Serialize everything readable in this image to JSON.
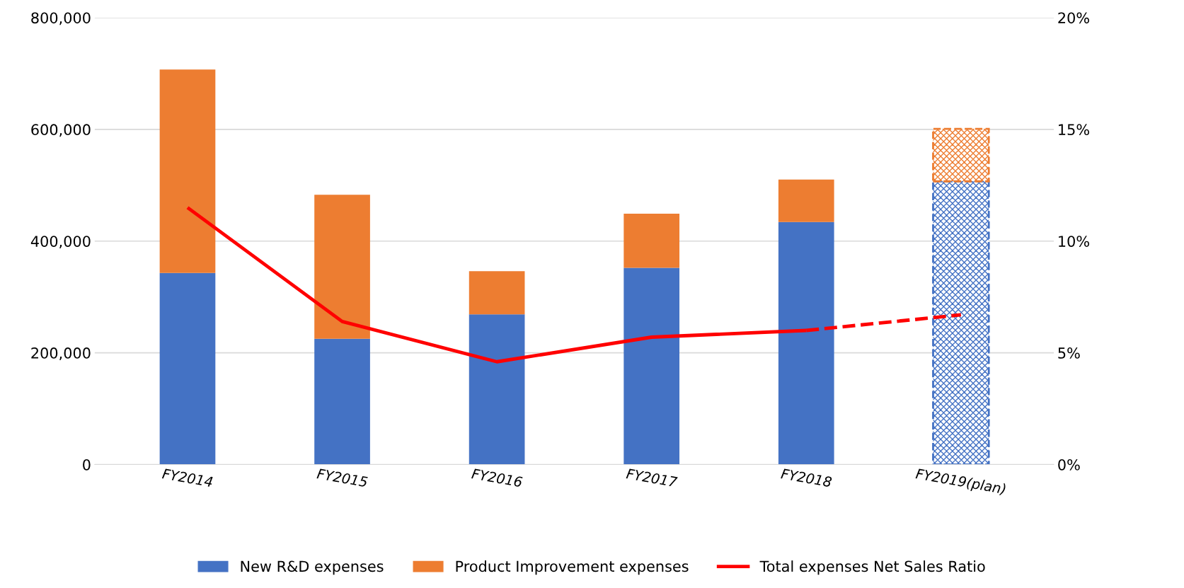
{
  "chart_data": {
    "type": "bar",
    "stacked": true,
    "categories": [
      "FY2014",
      "FY2015",
      "FY2016",
      "FY2017",
      "FY2018",
      "FY2019(plan)"
    ],
    "series": [
      {
        "name": "New R&D expenses",
        "color": "#4472c4",
        "values": [
          343000,
          225000,
          269000,
          352000,
          434000,
          null
        ]
      },
      {
        "name": "Product Improvement expenses",
        "color": "#ed7d31",
        "values": [
          364000,
          258000,
          77000,
          97000,
          76000,
          null
        ]
      },
      {
        "color": "#4472c4",
        "line_style": "dashed",
        "values": [
          null,
          null,
          null,
          null,
          null,
          507000
        ]
      },
      {
        "color": "#ed7d31",
        "line_style": "dashed",
        "values": [
          null,
          null,
          null,
          null,
          null,
          94000
        ]
      },
      {
        "name": "Total expenses Net Sales Ratio",
        "type": "line",
        "axis": "y2",
        "color": "#ff0000",
        "line_style": "solid",
        "values": [
          11.5,
          6.4,
          4.6,
          5.7,
          6.0,
          null
        ]
      },
      {
        "type": "line",
        "axis": "y2",
        "color": "#ff0000",
        "line_style": "dashed",
        "values": [
          null,
          null,
          null,
          null,
          6.0,
          6.7
        ]
      }
    ],
    "ylim": [
      0,
      800000
    ],
    "yticks": [
      {
        "value": 0,
        "label": "0"
      },
      {
        "value": 200000,
        "label": "200,000"
      },
      {
        "value": 400000,
        "label": "400,000"
      },
      {
        "value": 600000,
        "label": "600,000"
      },
      {
        "value": 800000,
        "label": "800,000"
      }
    ],
    "y2lim": [
      0,
      20
    ],
    "y2ticks": [
      {
        "value": 0,
        "label": "0%"
      },
      {
        "value": 5,
        "label": "5%"
      },
      {
        "value": 10,
        "label": "10%"
      },
      {
        "value": 15,
        "label": "15%"
      },
      {
        "value": 20,
        "label": "20%"
      }
    ],
    "grid": "y",
    "legend": "bottom"
  }
}
